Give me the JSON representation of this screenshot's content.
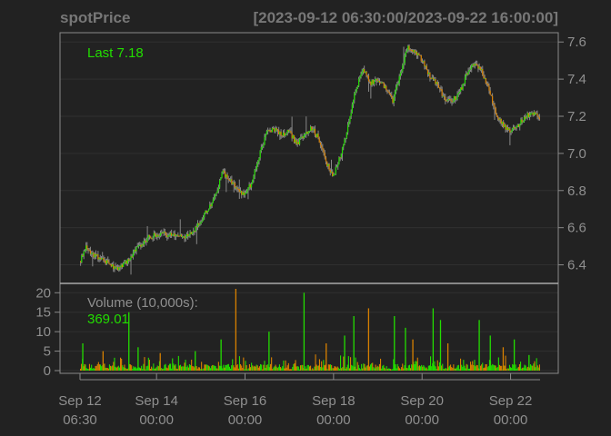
{
  "colors": {
    "background": "#222222",
    "grid": "#303030",
    "frame": "#8a8a8a",
    "text": "#8f8f8f",
    "title": "#777777",
    "up": "#22dd00",
    "down": "#d88000",
    "neutral": "#888888"
  },
  "chart_data": {
    "type": "candlestick-with-volume",
    "title": "spotPrice",
    "range_label": "[2023-09-12 06:30:00/2023-09-22 16:00:00]",
    "x_start": "2023-09-12 06:30",
    "x_end": "2023-09-22 16:00",
    "x_ticks": [
      {
        "time": "2023-09-12 06:30",
        "line1": "Sep 12",
        "line2": "06:30"
      },
      {
        "time": "2023-09-14 00:00",
        "line1": "Sep 14",
        "line2": "00:00"
      },
      {
        "time": "2023-09-16 00:00",
        "line1": "Sep 16",
        "line2": "00:00"
      },
      {
        "time": "2023-09-18 00:00",
        "line1": "Sep 18",
        "line2": "00:00"
      },
      {
        "time": "2023-09-20 00:00",
        "line1": "Sep 20",
        "line2": "00:00"
      },
      {
        "time": "2023-09-22 00:00",
        "line1": "Sep 22",
        "line2": "00:00"
      }
    ],
    "price_panel": {
      "ylim": [
        6.3,
        7.65
      ],
      "y_ticks": [
        "6.4",
        "6.6",
        "6.8",
        "7.0",
        "7.2",
        "7.4",
        "7.6"
      ],
      "legend_label": "Last 7.18",
      "path": [
        [
          "2023-09-12 06:30",
          6.42
        ],
        [
          "2023-09-12 10:00",
          6.5
        ],
        [
          "2023-09-12 14:00",
          6.45
        ],
        [
          "2023-09-12 20:00",
          6.42
        ],
        [
          "2023-09-13 02:00",
          6.38
        ],
        [
          "2023-09-13 08:00",
          6.42
        ],
        [
          "2023-09-13 14:00",
          6.5
        ],
        [
          "2023-09-13 20:00",
          6.55
        ],
        [
          "2023-09-14 02:00",
          6.57
        ],
        [
          "2023-09-14 08:00",
          6.56
        ],
        [
          "2023-09-14 14:00",
          6.55
        ],
        [
          "2023-09-14 20:00",
          6.58
        ],
        [
          "2023-09-15 04:00",
          6.7
        ],
        [
          "2023-09-15 08:00",
          6.78
        ],
        [
          "2023-09-15 12:00",
          6.9
        ],
        [
          "2023-09-15 16:00",
          6.85
        ],
        [
          "2023-09-15 20:00",
          6.8
        ],
        [
          "2023-09-16 00:00",
          6.78
        ],
        [
          "2023-09-16 04:00",
          6.85
        ],
        [
          "2023-09-16 08:00",
          7.0
        ],
        [
          "2023-09-16 12:00",
          7.12
        ],
        [
          "2023-09-16 16:00",
          7.13
        ],
        [
          "2023-09-16 20:00",
          7.1
        ],
        [
          "2023-09-17 00:00",
          7.12
        ],
        [
          "2023-09-17 04:00",
          7.05
        ],
        [
          "2023-09-17 08:00",
          7.1
        ],
        [
          "2023-09-17 12:00",
          7.14
        ],
        [
          "2023-09-17 16:00",
          7.08
        ],
        [
          "2023-09-17 20:00",
          6.95
        ],
        [
          "2023-09-18 00:00",
          6.88
        ],
        [
          "2023-09-18 04:00",
          7.0
        ],
        [
          "2023-09-18 08:00",
          7.15
        ],
        [
          "2023-09-18 12:00",
          7.35
        ],
        [
          "2023-09-18 16:00",
          7.45
        ],
        [
          "2023-09-18 20:00",
          7.38
        ],
        [
          "2023-09-19 00:00",
          7.4
        ],
        [
          "2023-09-19 04:00",
          7.35
        ],
        [
          "2023-09-19 08:00",
          7.28
        ],
        [
          "2023-09-19 12:00",
          7.42
        ],
        [
          "2023-09-19 16:00",
          7.57
        ],
        [
          "2023-09-19 20:00",
          7.55
        ],
        [
          "2023-09-20 00:00",
          7.5
        ],
        [
          "2023-09-20 04:00",
          7.42
        ],
        [
          "2023-09-20 08:00",
          7.38
        ],
        [
          "2023-09-20 12:00",
          7.3
        ],
        [
          "2023-09-20 16:00",
          7.28
        ],
        [
          "2023-09-20 20:00",
          7.32
        ],
        [
          "2023-09-21 00:00",
          7.42
        ],
        [
          "2023-09-21 04:00",
          7.48
        ],
        [
          "2023-09-21 08:00",
          7.45
        ],
        [
          "2023-09-21 12:00",
          7.35
        ],
        [
          "2023-09-21 16:00",
          7.22
        ],
        [
          "2023-09-21 20:00",
          7.15
        ],
        [
          "2023-09-22 00:00",
          7.12
        ],
        [
          "2023-09-22 04:00",
          7.15
        ],
        [
          "2023-09-22 08:00",
          7.2
        ],
        [
          "2023-09-22 12:00",
          7.22
        ],
        [
          "2023-09-22 16:00",
          7.18
        ]
      ]
    },
    "volume_panel": {
      "ylim": [
        0,
        21
      ],
      "y_ticks": [
        "0",
        "5",
        "10",
        "15",
        "20"
      ],
      "label": "Volume (10,000s):",
      "last_value": "369.01",
      "spikes": [
        [
          "2023-09-12 08:00",
          7
        ],
        [
          "2023-09-12 19:00",
          5
        ],
        [
          "2023-09-13 09:00",
          15
        ],
        [
          "2023-09-13 14:00",
          6
        ],
        [
          "2023-09-14 02:00",
          4.5
        ],
        [
          "2023-09-14 21:00",
          5
        ],
        [
          "2023-09-15 11:00",
          8
        ],
        [
          "2023-09-15 19:00",
          21
        ],
        [
          "2023-09-16 13:00",
          10
        ],
        [
          "2023-09-17 08:00",
          20
        ],
        [
          "2023-09-17 20:00",
          7
        ],
        [
          "2023-09-18 06:00",
          9
        ],
        [
          "2023-09-18 11:00",
          14
        ],
        [
          "2023-09-18 19:00",
          16
        ],
        [
          "2023-09-19 09:00",
          14
        ],
        [
          "2023-09-19 15:00",
          11
        ],
        [
          "2023-09-19 19:00",
          8
        ],
        [
          "2023-09-20 06:00",
          16
        ],
        [
          "2023-09-20 10:00",
          13
        ],
        [
          "2023-09-20 14:00",
          7
        ],
        [
          "2023-09-21 07:00",
          13
        ],
        [
          "2023-09-21 13:00",
          9
        ],
        [
          "2023-09-21 20:00",
          6
        ],
        [
          "2023-09-22 02:00",
          8
        ],
        [
          "2023-09-22 10:00",
          4
        ]
      ]
    }
  }
}
